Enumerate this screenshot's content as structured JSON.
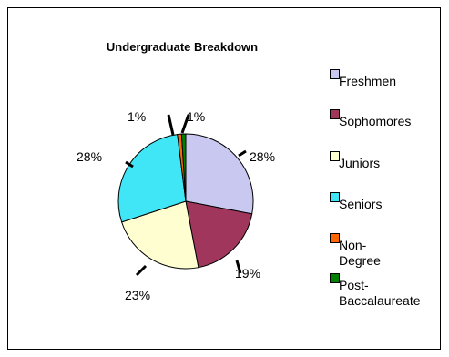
{
  "chart_data": {
    "type": "pie",
    "title": "Undergraduate Breakdown",
    "categories": [
      "Freshmen",
      "Sophomores",
      "Juniors",
      "Seniors",
      "Non-Degree",
      "Post-\nBaccalaureate"
    ],
    "values": [
      28,
      19,
      23,
      28,
      1,
      1
    ],
    "data_labels": [
      "28%",
      "19%",
      "23%",
      "28%",
      "1%",
      "1%"
    ],
    "colors": [
      "#c8c8f0",
      "#a0365c",
      "#fffed0",
      "#40e6f5",
      "#ff6600",
      "#008000"
    ],
    "legend_position": "right"
  }
}
